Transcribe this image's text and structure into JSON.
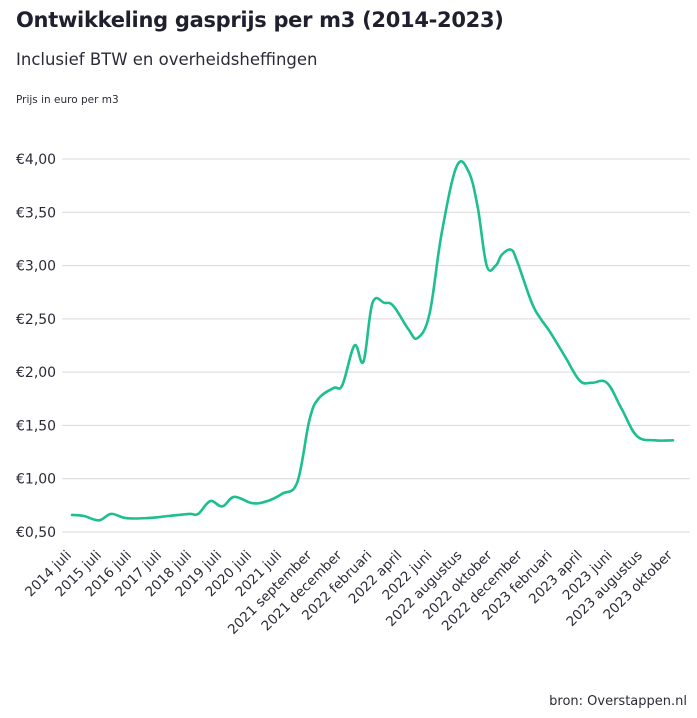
{
  "header": {
    "title": "Ontwikkeling gasprijs per m3 (2014-2023)",
    "subtitle": "Inclusief BTW en overheidsheffingen",
    "unit_label": "Prijs in euro per m3"
  },
  "footer": {
    "source": "bron: Overstappen.nl"
  },
  "colors": {
    "line": "#1dbf8f",
    "grid": "#d9d9d9",
    "text": "#2b2b38"
  },
  "chart_data": {
    "type": "line",
    "title": "Ontwikkeling gasprijs per m3 (2014-2023)",
    "ylabel": "Prijs in euro per m3",
    "xlabel": "",
    "ylim": [
      0.5,
      4.0
    ],
    "yticks": [
      0.5,
      1.0,
      1.5,
      2.0,
      2.5,
      3.0,
      3.5,
      4.0
    ],
    "ytick_labels": [
      "€0,50",
      "€1,00",
      "€1,50",
      "€2,00",
      "€2,50",
      "€3,00",
      "€3,50",
      "€4,00"
    ],
    "grid": true,
    "legend": "none",
    "categories": [
      "2014 juli",
      "2015 juli",
      "2016 juli",
      "2017 juli",
      "2018 juli",
      "2019 juli",
      "2020 juli",
      "2021 juli",
      "2021 september",
      "2021 december",
      "2022 februari",
      "2022 april",
      "2022 juni",
      "2022 augustus",
      "2022 oktober",
      "2022 december",
      "2023 februari",
      "2023 april",
      "2023 juni",
      "2023 augustus",
      "2023 oktober"
    ],
    "x": [
      0,
      1,
      2,
      3,
      4,
      5,
      6,
      7,
      8,
      9,
      10,
      11,
      12,
      13,
      14,
      15,
      16,
      17,
      18,
      19,
      20
    ],
    "series": [
      {
        "x": [
          0,
          0.4,
          0.9,
          1.3,
          1.8,
          2.5,
          3.2,
          3.9,
          4.2,
          4.6,
          5.0,
          5.4,
          6.0,
          6.5,
          7.0,
          7.5,
          7.9,
          8.2,
          8.7,
          9.0,
          9.4,
          9.7,
          10.0,
          10.4,
          10.7,
          11.2,
          11.5,
          11.9,
          12.3,
          12.8,
          13.2,
          13.5,
          13.8,
          14.1,
          14.3,
          14.6,
          14.8,
          15.3,
          15.6,
          15.9,
          16.4,
          16.9,
          17.3,
          17.8,
          18.3,
          18.8,
          19.4,
          20.0
        ],
        "values": [
          0.66,
          0.65,
          0.61,
          0.67,
          0.63,
          0.63,
          0.65,
          0.67,
          0.67,
          0.79,
          0.74,
          0.83,
          0.77,
          0.79,
          0.86,
          0.97,
          1.55,
          1.75,
          1.85,
          1.88,
          2.25,
          2.1,
          2.65,
          2.65,
          2.62,
          2.4,
          2.32,
          2.55,
          3.3,
          3.93,
          3.88,
          3.55,
          3.0,
          3.0,
          3.1,
          3.15,
          3.05,
          2.65,
          2.5,
          2.38,
          2.15,
          1.92,
          1.9,
          1.9,
          1.65,
          1.4,
          1.36,
          1.36
        ]
      }
    ]
  }
}
